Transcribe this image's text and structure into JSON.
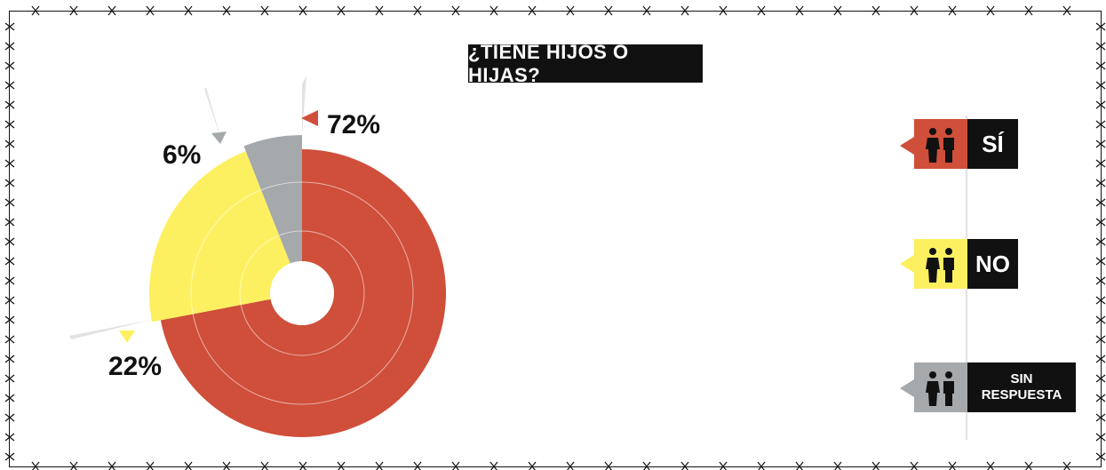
{
  "title": "¿TIENE HIJOS O HIJAS?",
  "colors": {
    "si": "#cf4f3a",
    "no": "#fdf060",
    "sin_respuesta": "#a6a9ab",
    "label_bg": "#111111"
  },
  "legend": [
    {
      "key": "si",
      "label": "SÍ",
      "icon": "family-icon"
    },
    {
      "key": "no",
      "label": "NO",
      "icon": "family-icon"
    },
    {
      "key": "sin_respuesta",
      "label_line1": "SIN",
      "label_line2": "RESPUESTA",
      "icon": "family-icon"
    }
  ],
  "chart_data": {
    "type": "pie",
    "title": "¿TIENE HIJOS O HIJAS?",
    "slices": [
      {
        "label": "SÍ",
        "value": 72,
        "display": "72%"
      },
      {
        "label": "NO",
        "value": 22,
        "display": "22%"
      },
      {
        "label": "SIN RESPUESTA",
        "value": 6,
        "display": "6%"
      }
    ],
    "style": "donut, exploded wedges, radial guides"
  }
}
